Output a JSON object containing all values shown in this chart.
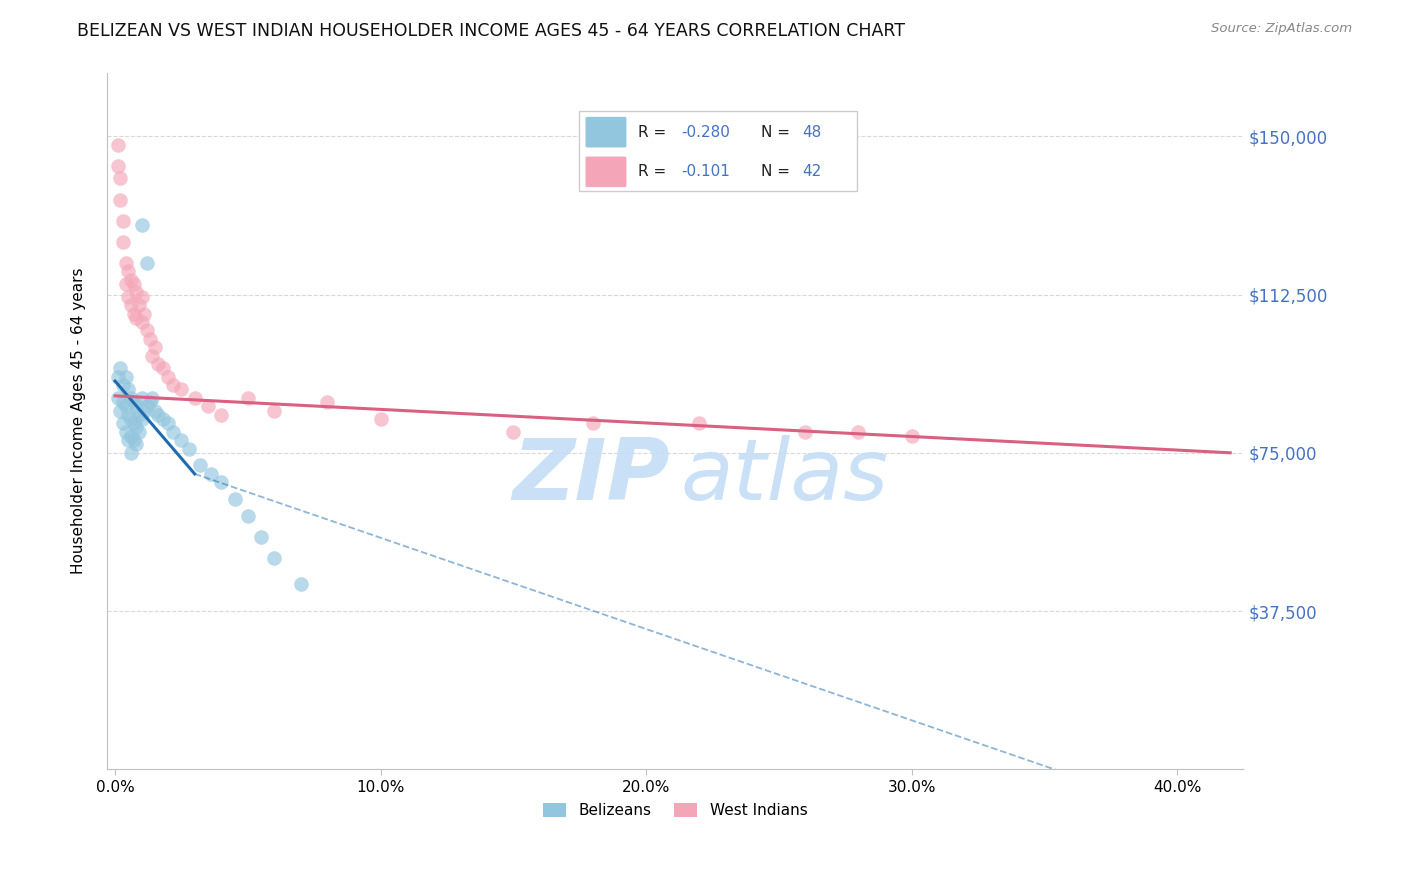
{
  "title": "BELIZEAN VS WEST INDIAN HOUSEHOLDER INCOME AGES 45 - 64 YEARS CORRELATION CHART",
  "source": "Source: ZipAtlas.com",
  "ylabel": "Householder Income Ages 45 - 64 years",
  "ytick_labels": [
    "$37,500",
    "$75,000",
    "$112,500",
    "$150,000"
  ],
  "ytick_vals": [
    37500,
    75000,
    112500,
    150000
  ],
  "xtick_labels": [
    "0.0%",
    "10.0%",
    "20.0%",
    "30.0%",
    "40.0%"
  ],
  "xtick_vals": [
    0.0,
    0.1,
    0.2,
    0.3,
    0.4
  ],
  "ylim": [
    0,
    165000
  ],
  "xlim": [
    -0.003,
    0.425
  ],
  "legend_r1": "-0.280",
  "legend_n1": "48",
  "legend_r2": "-0.101",
  "legend_n2": "42",
  "color_blue": "#92c5de",
  "color_pink": "#f4a6b8",
  "color_line_blue": "#1f6baf",
  "color_line_pink": "#d96080",
  "color_ytick_label": "#4472c4",
  "watermark_color": "#c5ddf5",
  "grid_color": "#d5d5d5",
  "belizeans_x": [
    0.001,
    0.001,
    0.002,
    0.002,
    0.003,
    0.003,
    0.003,
    0.004,
    0.004,
    0.004,
    0.005,
    0.005,
    0.005,
    0.006,
    0.006,
    0.006,
    0.006,
    0.007,
    0.007,
    0.007,
    0.008,
    0.008,
    0.008,
    0.009,
    0.009,
    0.01,
    0.01,
    0.011,
    0.012,
    0.013,
    0.014,
    0.015,
    0.016,
    0.018,
    0.02,
    0.022,
    0.025,
    0.028,
    0.032,
    0.036,
    0.04,
    0.045,
    0.05,
    0.055,
    0.06,
    0.07,
    0.01,
    0.012
  ],
  "belizeans_y": [
    93000,
    88000,
    95000,
    85000,
    91000,
    87000,
    82000,
    93000,
    86000,
    80000,
    90000,
    84000,
    78000,
    88000,
    83000,
    79000,
    75000,
    87000,
    82000,
    78000,
    86000,
    81000,
    77000,
    84000,
    80000,
    88000,
    83000,
    85000,
    86000,
    87000,
    88000,
    85000,
    84000,
    83000,
    82000,
    80000,
    78000,
    76000,
    72000,
    70000,
    68000,
    64000,
    60000,
    55000,
    50000,
    44000,
    129000,
    120000
  ],
  "westindians_x": [
    0.001,
    0.001,
    0.002,
    0.002,
    0.003,
    0.003,
    0.004,
    0.004,
    0.005,
    0.005,
    0.006,
    0.006,
    0.007,
    0.007,
    0.008,
    0.008,
    0.009,
    0.01,
    0.01,
    0.011,
    0.012,
    0.013,
    0.014,
    0.015,
    0.016,
    0.018,
    0.02,
    0.022,
    0.025,
    0.03,
    0.035,
    0.04,
    0.05,
    0.06,
    0.08,
    0.1,
    0.15,
    0.18,
    0.22,
    0.26,
    0.28,
    0.3
  ],
  "westindians_y": [
    148000,
    143000,
    140000,
    135000,
    130000,
    125000,
    120000,
    115000,
    118000,
    112000,
    116000,
    110000,
    115000,
    108000,
    113000,
    107000,
    110000,
    112000,
    106000,
    108000,
    104000,
    102000,
    98000,
    100000,
    96000,
    95000,
    93000,
    91000,
    90000,
    88000,
    86000,
    84000,
    88000,
    85000,
    87000,
    83000,
    80000,
    82000,
    82000,
    80000,
    80000,
    79000
  ],
  "blue_line_x0": 0.0,
  "blue_line_y0": 92000,
  "blue_line_xsolid": 0.03,
  "blue_line_ysolid": 70000,
  "blue_line_xdash": 0.4,
  "blue_line_ydash": -10000,
  "pink_line_x0": 0.0,
  "pink_line_y0": 88500,
  "pink_line_x1": 0.42,
  "pink_line_y1": 75000
}
